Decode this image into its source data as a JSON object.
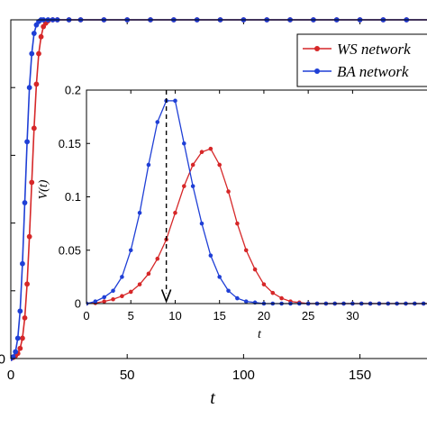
{
  "chart_data": [
    {
      "type": "line",
      "role": "main",
      "xlabel": "t",
      "ylabel": "",
      "xlim": [
        0,
        185
      ],
      "ylim": [
        0,
        1
      ],
      "x_ticks": [
        0,
        50,
        100,
        150
      ],
      "y_ticks": [
        0,
        0.2,
        0.4,
        0.6,
        0.8,
        1
      ],
      "y_tick_labels_visible": [
        "0",
        "",
        "",
        "",
        "",
        ""
      ],
      "legend_position": "top-right",
      "grid": false,
      "series": [
        {
          "name": "WS network",
          "color": "#d62728",
          "marker": "circle",
          "x": [
            0,
            1,
            2,
            3,
            4,
            5,
            6,
            7,
            8,
            9,
            10,
            11,
            12,
            13,
            14,
            15,
            16,
            18,
            20,
            25,
            30,
            40,
            50,
            60,
            70,
            80,
            90,
            100,
            110,
            120,
            130,
            140,
            150,
            160,
            170,
            180,
            185
          ],
          "y": [
            0,
            0.003,
            0.008,
            0.015,
            0.03,
            0.06,
            0.12,
            0.22,
            0.36,
            0.52,
            0.68,
            0.81,
            0.9,
            0.95,
            0.98,
            0.99,
            0.997,
            1,
            1,
            1,
            1,
            1,
            1,
            1,
            1,
            1,
            1,
            1,
            1,
            1,
            1,
            1,
            1,
            1,
            1,
            1,
            1
          ]
        },
        {
          "name": "BA network",
          "color": "#1f3fd6",
          "marker": "circle",
          "x": [
            0,
            1,
            2,
            3,
            4,
            5,
            6,
            7,
            8,
            9,
            10,
            11,
            12,
            13,
            14,
            16,
            18,
            20,
            25,
            30,
            40,
            50,
            60,
            70,
            80,
            90,
            100,
            110,
            120,
            130,
            140,
            150,
            160,
            170,
            180,
            185
          ],
          "y": [
            0,
            0.005,
            0.02,
            0.06,
            0.14,
            0.28,
            0.46,
            0.64,
            0.8,
            0.9,
            0.96,
            0.985,
            0.995,
            1,
            1,
            1,
            1,
            1,
            1,
            1,
            1,
            1,
            1,
            1,
            1,
            1,
            1,
            1,
            1,
            1,
            1,
            1,
            1,
            1,
            1,
            1
          ]
        }
      ]
    },
    {
      "type": "line",
      "role": "inset",
      "xlabel": "t",
      "ylabel": "V(t)",
      "xlim": [
        0,
        39
      ],
      "ylim": [
        0,
        0.2
      ],
      "x_ticks": [
        0,
        5,
        10,
        15,
        20,
        25,
        30
      ],
      "y_ticks": [
        0,
        0.05,
        0.1,
        0.15,
        0.2
      ],
      "grid": false,
      "annotation": {
        "type": "dashed-arrow",
        "x": 9,
        "from_y": 0.2,
        "to_y": 0.003
      },
      "series": [
        {
          "name": "WS network",
          "color": "#d62728",
          "marker": "circle",
          "x": [
            0,
            1,
            2,
            3,
            4,
            5,
            6,
            7,
            8,
            9,
            10,
            11,
            12,
            13,
            14,
            15,
            16,
            17,
            18,
            19,
            20,
            21,
            22,
            23,
            24,
            25,
            26,
            27,
            28,
            29,
            30,
            31,
            32,
            33,
            34,
            35,
            36,
            37,
            38,
            39
          ],
          "y": [
            0,
            0.0005,
            0.002,
            0.004,
            0.007,
            0.011,
            0.018,
            0.028,
            0.042,
            0.06,
            0.085,
            0.11,
            0.13,
            0.142,
            0.145,
            0.13,
            0.105,
            0.075,
            0.05,
            0.032,
            0.018,
            0.01,
            0.005,
            0.002,
            0.001,
            0,
            0,
            0,
            0,
            0,
            0,
            0,
            0,
            0,
            0,
            0,
            0,
            0,
            0,
            0
          ]
        },
        {
          "name": "BA network",
          "color": "#1f3fd6",
          "marker": "circle",
          "x": [
            0,
            1,
            2,
            3,
            4,
            5,
            6,
            7,
            8,
            9,
            10,
            11,
            12,
            13,
            14,
            15,
            16,
            17,
            18,
            19,
            20,
            21,
            22,
            23,
            24,
            25,
            26,
            27,
            28,
            29,
            30,
            31,
            32,
            33,
            34,
            35,
            36,
            37,
            38,
            39
          ],
          "y": [
            0,
            0.002,
            0.006,
            0.012,
            0.025,
            0.05,
            0.085,
            0.13,
            0.17,
            0.19,
            0.19,
            0.15,
            0.11,
            0.075,
            0.045,
            0.025,
            0.012,
            0.005,
            0.002,
            0.001,
            0,
            0,
            0,
            0,
            0,
            0,
            0,
            0,
            0,
            0,
            0,
            0,
            0,
            0,
            0,
            0,
            0,
            0,
            0,
            0
          ]
        }
      ]
    }
  ]
}
